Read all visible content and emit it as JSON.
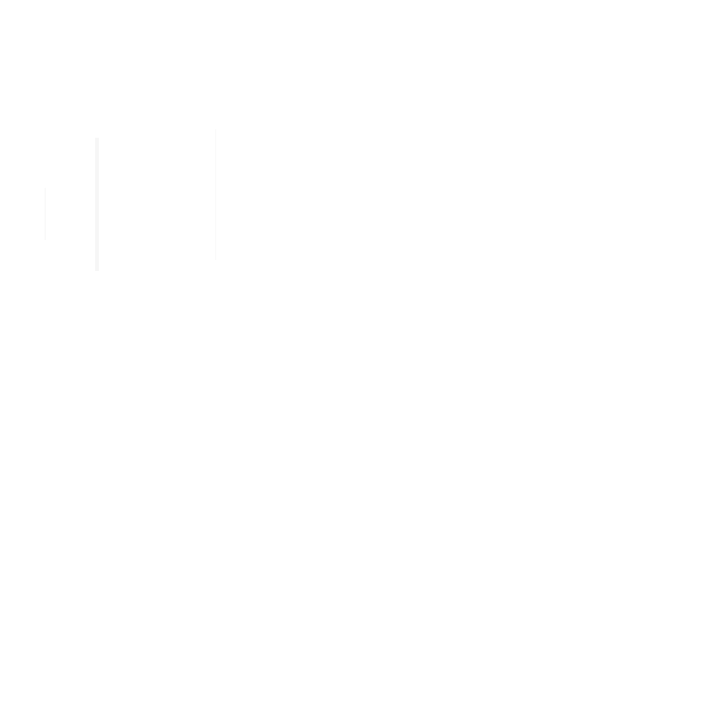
{
  "screen": {
    "background_color": "#ffffff",
    "guide_color": "#f6f6f6"
  }
}
